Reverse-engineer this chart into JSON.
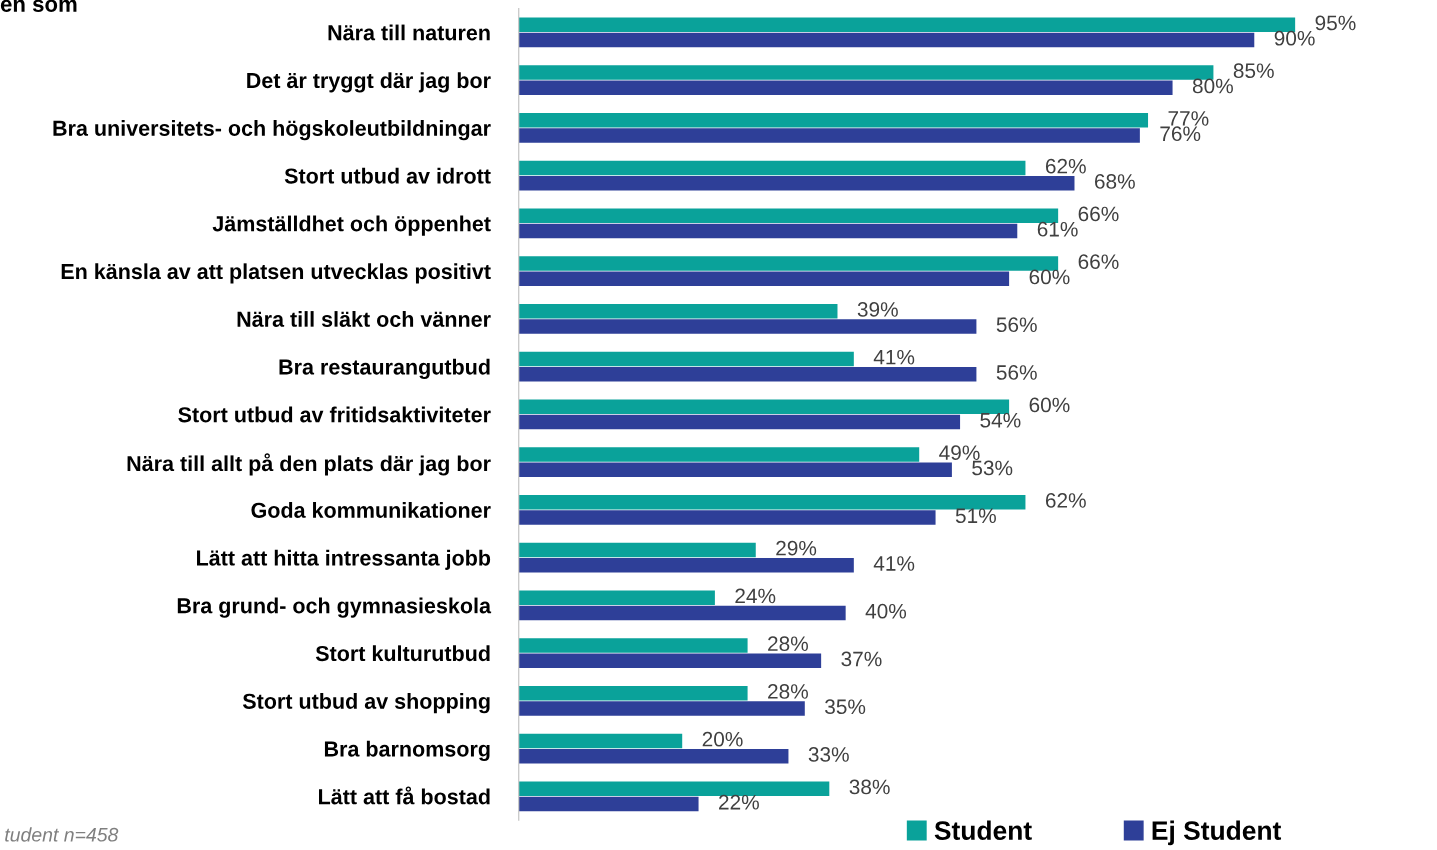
{
  "chart_data": {
    "type": "bar",
    "orientation": "horizontal",
    "title": "en som",
    "categories": [
      "Nära till naturen",
      "Det är tryggt där jag bor",
      "Bra universitets- och högskoleutbildningar",
      "Stort utbud av idrott",
      "Jämställdhet och öppenhet",
      "En känsla av att platsen utvecklas positivt",
      "Nära till släkt och vänner",
      "Bra restaurangutbud",
      "Stort utbud av fritidsaktiviteter",
      "Nära till allt på den plats där jag bor",
      "Goda kommunikationer",
      "Lätt att hitta intressanta jobb",
      "Bra grund- och gymnasieskola",
      "Stort kulturutbud",
      "Stort utbud av shopping",
      "Bra barnomsorg",
      "Lätt att få bostad"
    ],
    "series": [
      {
        "name": "Student",
        "color": "#0aa29a",
        "values": [
          95,
          85,
          77,
          62,
          66,
          66,
          39,
          41,
          60,
          49,
          62,
          29,
          24,
          28,
          28,
          20,
          38
        ],
        "value_labels": [
          "95%",
          "85%",
          "77%",
          "62%",
          "66%",
          "66%",
          "39%",
          "41%",
          "60%",
          "49%",
          "62%",
          "29%",
          "24%",
          "28%",
          "28%",
          "20%",
          "38%"
        ]
      },
      {
        "name": "Ej Student",
        "color": "#2e3f98",
        "values": [
          90,
          80,
          76,
          68,
          61,
          60,
          56,
          56,
          54,
          53,
          51,
          41,
          40,
          37,
          35,
          33,
          22
        ],
        "value_labels": [
          "90%",
          "80%",
          "76%",
          "68%",
          "61%",
          "60%",
          "56%",
          "56%",
          "54%",
          "53%",
          "51%",
          "41%",
          "40%",
          "37%",
          "35%",
          "33%",
          "22%"
        ]
      }
    ],
    "legend": "bottom right",
    "grid": false,
    "tick_labels": "y",
    "annotations": [
      "tudent n=458"
    ]
  }
}
